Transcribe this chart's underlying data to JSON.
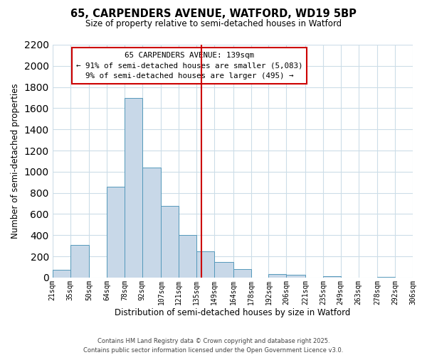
{
  "title": "65, CARPENDERS AVENUE, WATFORD, WD19 5BP",
  "subtitle": "Size of property relative to semi-detached houses in Watford",
  "xlabel": "Distribution of semi-detached houses by size in Watford",
  "ylabel": "Number of semi-detached properties",
  "bin_labels": [
    "21sqm",
    "35sqm",
    "50sqm",
    "64sqm",
    "78sqm",
    "92sqm",
    "107sqm",
    "121sqm",
    "135sqm",
    "149sqm",
    "164sqm",
    "178sqm",
    "192sqm",
    "206sqm",
    "221sqm",
    "235sqm",
    "249sqm",
    "263sqm",
    "278sqm",
    "292sqm",
    "306sqm"
  ],
  "bin_edges": [
    21,
    35,
    50,
    64,
    78,
    92,
    107,
    121,
    135,
    149,
    164,
    178,
    192,
    206,
    221,
    235,
    249,
    263,
    278,
    292,
    306
  ],
  "bar_heights": [
    75,
    305,
    0,
    860,
    1700,
    1040,
    680,
    400,
    245,
    145,
    80,
    0,
    30,
    25,
    0,
    15,
    0,
    0,
    5,
    0
  ],
  "bar_color": "#c8d8e8",
  "bar_edge_color": "#5599bb",
  "vline_x": 139,
  "vline_color": "#cc0000",
  "ylim": [
    0,
    2200
  ],
  "yticks": [
    0,
    200,
    400,
    600,
    800,
    1000,
    1200,
    1400,
    1600,
    1800,
    2000,
    2200
  ],
  "annotation_title": "65 CARPENDERS AVENUE: 139sqm",
  "annotation_line1": "← 91% of semi-detached houses are smaller (5,083)",
  "annotation_line2": "9% of semi-detached houses are larger (495) →",
  "annotation_box_color": "#ffffff",
  "annotation_border_color": "#cc0000",
  "footer_line1": "Contains HM Land Registry data © Crown copyright and database right 2025.",
  "footer_line2": "Contains public sector information licensed under the Open Government Licence v3.0.",
  "background_color": "#ffffff",
  "grid_color": "#ccdde8"
}
